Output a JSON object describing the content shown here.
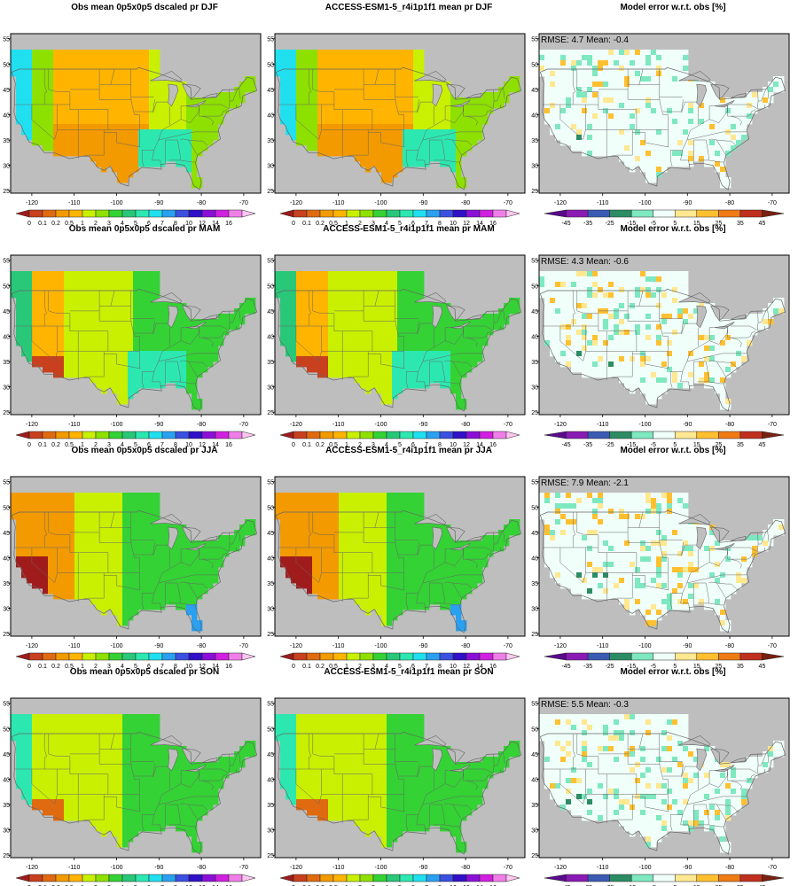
{
  "chart_data": {
    "type": "heatmap",
    "layout": {
      "rows": 4,
      "cols": 3
    },
    "seasons": [
      "DJF",
      "MAM",
      "JJA",
      "SON"
    ],
    "panel_titles": {
      "obs": "Obs mean 0p5x0p5 dscaled pr",
      "model": "ACCESS-ESM1-5_r4i1p1f1 mean pr",
      "error": "Model error w.r.t. obs [%]"
    },
    "axes": {
      "xlim": [
        -125,
        -66
      ],
      "ylim": [
        24.5,
        56
      ],
      "xticks": [
        -120,
        -110,
        -100,
        -90,
        -80,
        -70
      ],
      "yticks": [
        25,
        30,
        35,
        40,
        45,
        50,
        55
      ]
    },
    "stats": [
      {
        "season": "DJF",
        "label": "RMSE: 4.7  Mean: -0.4",
        "rmse": 4.7,
        "mean": -0.4
      },
      {
        "season": "MAM",
        "label": "RMSE: 4.3  Mean: -0.6",
        "rmse": 4.3,
        "mean": -0.6
      },
      {
        "season": "JJA",
        "label": "RMSE: 7.9  Mean: -2.1",
        "rmse": 7.9,
        "mean": -2.1
      },
      {
        "season": "SON",
        "label": "RMSE: 5.5  Mean: -0.3",
        "rmse": 5.5,
        "mean": -0.3
      }
    ],
    "pr_colorbar": {
      "levels": [
        "0",
        "0.1",
        "0.2",
        "0.5",
        "1",
        "2",
        "3",
        "4",
        "5",
        "6",
        "7",
        "8",
        "10",
        "12",
        "14",
        "16"
      ],
      "colors": [
        "#a01c1c",
        "#c8401e",
        "#e06a10",
        "#f29a00",
        "#ffb400",
        "#c8f000",
        "#8ee000",
        "#34d234",
        "#28c878",
        "#2ce8b0",
        "#20e0f0",
        "#2aa0f0",
        "#3a50e0",
        "#3010c8",
        "#8a10d8",
        "#d020e0",
        "#f07ee8",
        "#ffc6f2"
      ]
    },
    "err_colorbar": {
      "levels": [
        "-45",
        "-35",
        "-25",
        "-15",
        "-5",
        "5",
        "15",
        "25",
        "35",
        "45"
      ],
      "colors": [
        "#5a0a8c",
        "#8a1ab4",
        "#3a5ab4",
        "#2c8c64",
        "#7ee8c0",
        "#f0fffa",
        "#ffe890",
        "#ffc030",
        "#f07a14",
        "#c0301e",
        "#7a2010"
      ]
    },
    "map_colors": {
      "land_default": "#f0fffa",
      "ocean": "#bebebe",
      "lakes": "#bebebe",
      "borders": "#666666"
    }
  }
}
